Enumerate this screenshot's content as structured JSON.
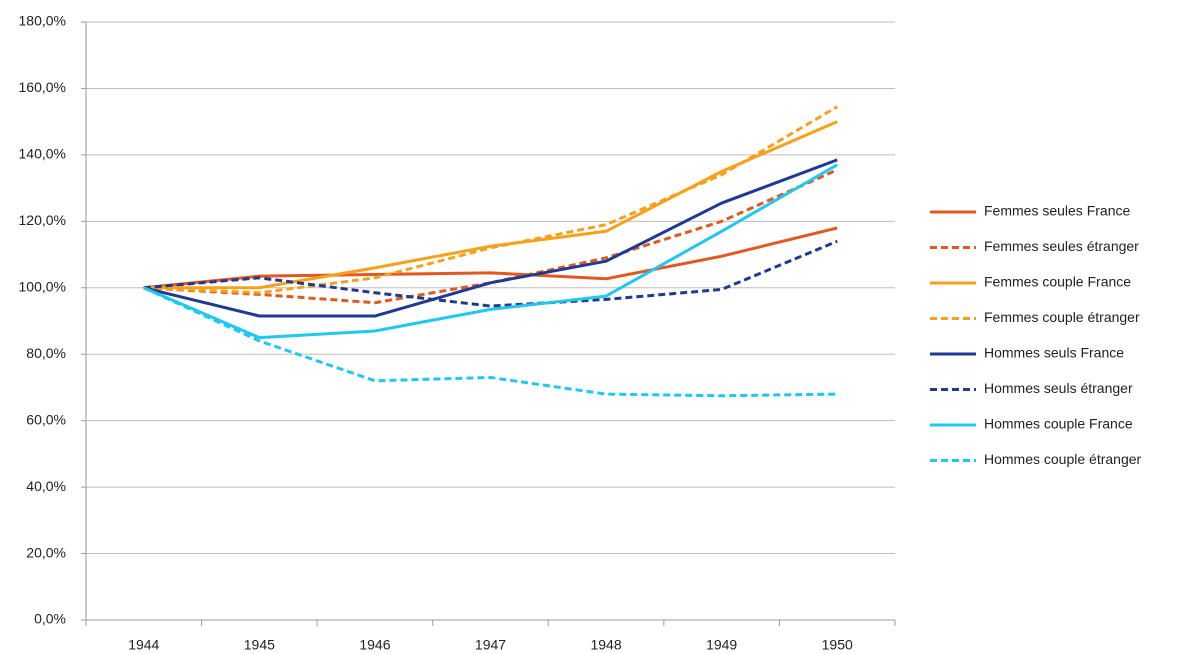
{
  "chart_data": {
    "type": "line",
    "categories": [
      "1944",
      "1945",
      "1946",
      "1947",
      "1948",
      "1949",
      "1950"
    ],
    "series": [
      {
        "name": "Femmes seules France",
        "color": "#e2581e",
        "dashed": false,
        "values": [
          100,
          103.5,
          104,
          104.5,
          102.7,
          109.5,
          118
        ]
      },
      {
        "name": "Femmes seules étranger",
        "color": "#e2581e",
        "dashed": true,
        "values": [
          100,
          98,
          95.5,
          101.5,
          109,
          120,
          135.5
        ]
      },
      {
        "name": "Femmes couple France",
        "color": "#f7a11a",
        "dashed": false,
        "values": [
          100,
          100,
          106,
          112.5,
          117,
          135,
          150
        ]
      },
      {
        "name": "Femmes couple étranger",
        "color": "#f7a11a",
        "dashed": true,
        "values": [
          100,
          98.5,
          103,
          112,
          119,
          134,
          154.5
        ]
      },
      {
        "name": "Hommes seuls France",
        "color": "#1f3a93",
        "dashed": false,
        "values": [
          100,
          91.5,
          91.5,
          101.5,
          108,
          125.5,
          138.5
        ]
      },
      {
        "name": "Hommes seuls étranger",
        "color": "#1f3a93",
        "dashed": true,
        "values": [
          100,
          103,
          98.5,
          94.5,
          96.5,
          99.5,
          114
        ]
      },
      {
        "name": "Hommes couple France",
        "color": "#1ec8f0",
        "dashed": false,
        "values": [
          100,
          85,
          87,
          93.5,
          97.5,
          117,
          137
        ]
      },
      {
        "name": "Hommes couple étranger",
        "color": "#1ec8f0",
        "dashed": true,
        "values": [
          100,
          84,
          72,
          73,
          68,
          67.5,
          68
        ]
      }
    ],
    "ylim": [
      0,
      180
    ],
    "yticks": [
      {
        "value": 0,
        "label": "0,0%"
      },
      {
        "value": 20,
        "label": "20,0%"
      },
      {
        "value": 40,
        "label": "40,0%"
      },
      {
        "value": 60,
        "label": "60,0%"
      },
      {
        "value": 80,
        "label": "80,0%"
      },
      {
        "value": 100,
        "label": "100,0%"
      },
      {
        "value": 120,
        "label": "120,0%"
      },
      {
        "value": 140,
        "label": "140,0%"
      },
      {
        "value": 160,
        "label": "160,0%"
      },
      {
        "value": 180,
        "label": "180,0%"
      }
    ],
    "grid": true,
    "legend": "right"
  }
}
